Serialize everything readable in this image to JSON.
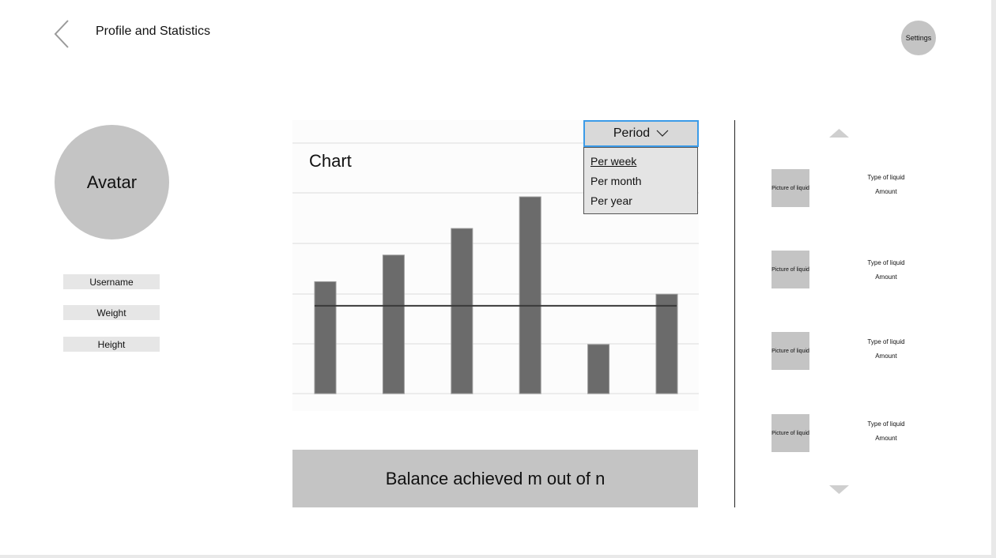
{
  "header": {
    "title": "Profile and Statistics",
    "settings_label": "Settings"
  },
  "profile": {
    "avatar_label": "Avatar",
    "fields": [
      "Username",
      "Weight",
      "Height"
    ]
  },
  "chart": {
    "title": "Chart",
    "period_label": "Period",
    "period_options": [
      "Per week",
      "Per month",
      "Per year"
    ],
    "selected_option": "Per week"
  },
  "chart_data": {
    "type": "bar",
    "title": "Chart",
    "categories": [
      "",
      "",
      "",
      "",
      "",
      ""
    ],
    "values": [
      2.23,
      2.76,
      3.29,
      3.92,
      0.98,
      1.98
    ],
    "reference_line": 1.75,
    "ylim": [
      0,
      4
    ],
    "grid": true,
    "color": "#6b6b6b"
  },
  "balance": {
    "text": "Balance achieved m out of n"
  },
  "liquids": [
    {
      "picture_label": "Picture of liquid",
      "type_label": "Type of liquid",
      "amount_label": "Amount"
    },
    {
      "picture_label": "Picture of liquid",
      "type_label": "Type of liquid",
      "amount_label": "Amount"
    },
    {
      "picture_label": "Picture of liquid",
      "type_label": "Type of liquid",
      "amount_label": "Amount"
    },
    {
      "picture_label": "Picture of liquid",
      "type_label": "Type of liquid",
      "amount_label": "Amount"
    }
  ],
  "colors": {
    "accent": "#3b9be8",
    "placeholder": "#c4c4c4",
    "bar": "#6b6b6b"
  }
}
